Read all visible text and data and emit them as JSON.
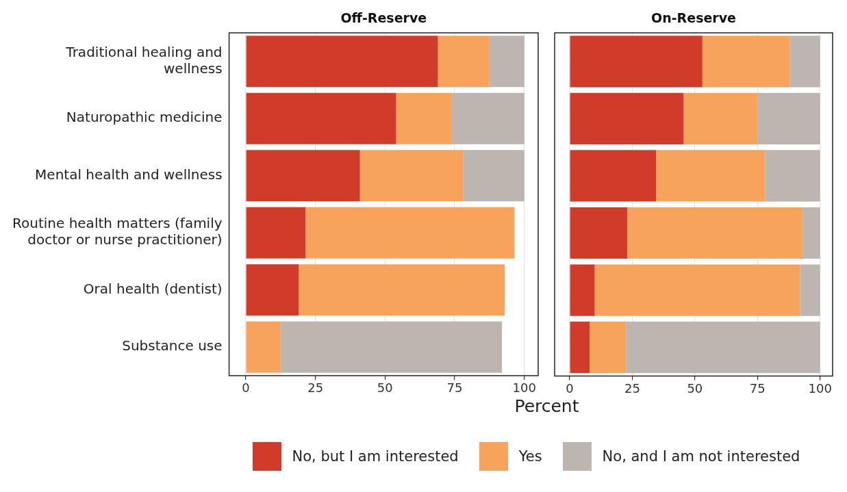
{
  "chart_data": [
    {
      "type": "bar",
      "orientation": "horizontal",
      "stacked": true,
      "title": "Off-Reserve",
      "xlabel": "Percent",
      "categories": [
        "Traditional healing and wellness",
        "Naturopathic medicine",
        "Mental health and wellness",
        "Routine health matters (family doctor or nurse practitioner)",
        "Oral health (dentist)",
        "Substance use"
      ],
      "series": [
        {
          "name": "No, but I am interested",
          "color": "#d13b2a",
          "values": [
            69,
            54,
            41,
            21.5,
            19,
            null
          ]
        },
        {
          "name": "Yes",
          "color": "#f7a35c",
          "values": [
            18.5,
            20,
            37,
            75,
            74,
            12.5
          ]
        },
        {
          "name": "No, and I am not interested",
          "color": "#bdb6b0",
          "values": [
            12.5,
            26,
            22,
            null,
            null,
            79.5
          ]
        }
      ],
      "xlim": [
        -6,
        105
      ],
      "xticks": [
        0,
        25,
        50,
        75,
        100
      ],
      "grid": "x",
      "legend": "bottom"
    },
    {
      "type": "bar",
      "orientation": "horizontal",
      "stacked": true,
      "title": "On-Reserve",
      "categories": [
        null,
        null,
        null,
        null,
        null,
        null
      ],
      "series": [
        {
          "color": "#d13b2a",
          "values": [
            53,
            45.5,
            34.5,
            23,
            10,
            8
          ]
        },
        {
          "color": "#f7a35c",
          "values": [
            35,
            29.5,
            43.5,
            70,
            82,
            14.5
          ]
        },
        {
          "color": "#bdb6b0",
          "values": [
            12,
            25,
            22,
            7,
            8,
            77.5
          ]
        }
      ],
      "xlim": [
        -6,
        105
      ],
      "xticks": [
        0,
        25,
        50,
        75,
        100
      ],
      "grid": "x",
      "tick_labels": "x"
    }
  ]
}
